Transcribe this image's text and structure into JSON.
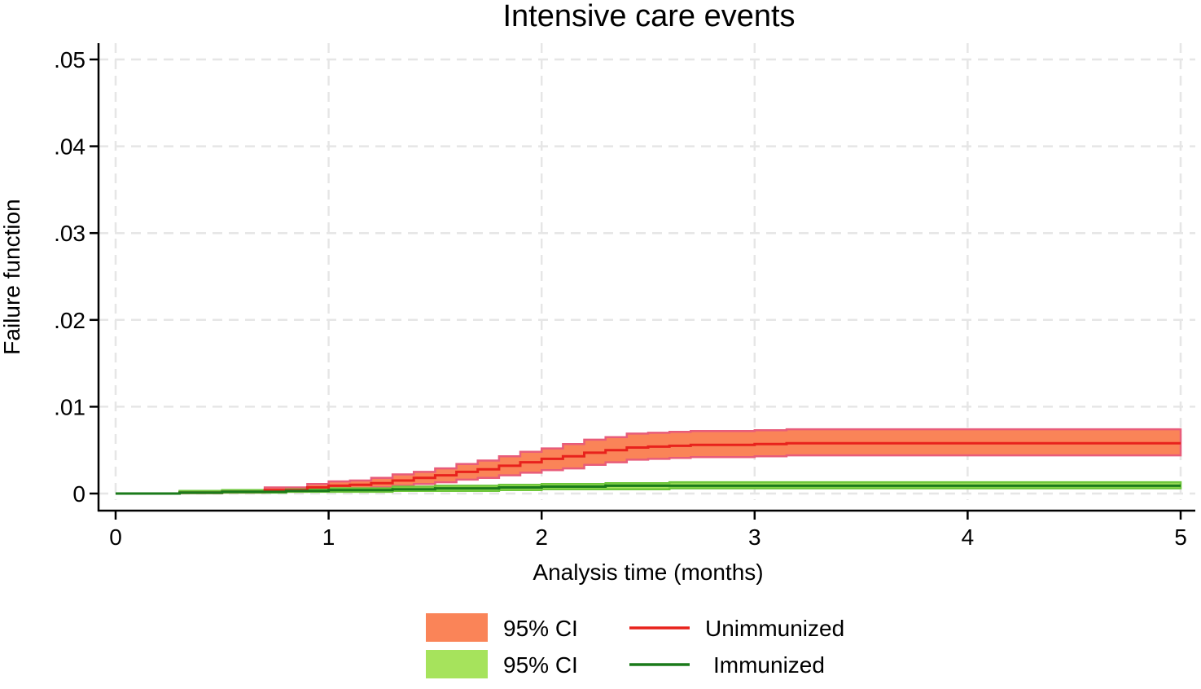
{
  "chart_data": {
    "type": "line",
    "title": "Intensive care events",
    "xlabel": "Analysis time (months)",
    "ylabel": "Failure function",
    "xlim": [
      0,
      5
    ],
    "ylim": [
      0,
      0.05
    ],
    "xticks": [
      0,
      1,
      2,
      3,
      4,
      5
    ],
    "xtick_labels": [
      "0",
      "1",
      "2",
      "3",
      "4",
      "5"
    ],
    "yticks": [
      0,
      0.01,
      0.02,
      0.03,
      0.04,
      0.05
    ],
    "ytick_labels": [
      "0",
      ".01",
      ".02",
      ".03",
      ".04",
      ".05"
    ],
    "grid": true,
    "legend_position": "bottom",
    "series": [
      {
        "name": "Unimmunized",
        "line_color": "#e8221c",
        "ci_label": "95% CI",
        "ci_fill": "#fa8458",
        "ci_edge": "#e85c7a",
        "x": [
          0,
          0.3,
          0.5,
          0.7,
          0.9,
          1.0,
          1.1,
          1.2,
          1.3,
          1.4,
          1.5,
          1.6,
          1.7,
          1.8,
          1.9,
          2.0,
          2.1,
          2.2,
          2.3,
          2.4,
          2.5,
          2.6,
          2.7,
          2.8,
          3.0,
          3.15,
          4.0,
          5.0
        ],
        "y": [
          0,
          0.0001,
          0.0002,
          0.0004,
          0.0007,
          0.0009,
          0.001,
          0.0012,
          0.0015,
          0.0018,
          0.0021,
          0.0025,
          0.0028,
          0.0032,
          0.0036,
          0.004,
          0.0043,
          0.0047,
          0.005,
          0.0053,
          0.0054,
          0.0055,
          0.0056,
          0.0056,
          0.0057,
          0.0058,
          0.0058,
          0.0058
        ],
        "lower": [
          0,
          5e-05,
          0.0001,
          0.0002,
          0.0003,
          0.0005,
          0.0006,
          0.0007,
          0.0009,
          0.0011,
          0.0013,
          0.0016,
          0.0018,
          0.0021,
          0.0024,
          0.0027,
          0.0029,
          0.0033,
          0.0036,
          0.0039,
          0.004,
          0.0041,
          0.0042,
          0.0042,
          0.0043,
          0.0044,
          0.0044,
          0.0044
        ],
        "upper": [
          0,
          0.0002,
          0.0004,
          0.0007,
          0.0011,
          0.0014,
          0.0015,
          0.0018,
          0.0022,
          0.0025,
          0.0029,
          0.0034,
          0.0038,
          0.0043,
          0.0048,
          0.0052,
          0.0057,
          0.0062,
          0.0065,
          0.0069,
          0.007,
          0.0071,
          0.0072,
          0.0072,
          0.0073,
          0.0074,
          0.0074,
          0.0074
        ]
      },
      {
        "name": "Immunized",
        "line_color": "#1a7a1a",
        "ci_label": "95% CI",
        "ci_fill": "#a6e35c",
        "ci_edge": "#6fc73c",
        "x": [
          0,
          0.3,
          0.5,
          0.8,
          1.0,
          1.3,
          1.5,
          1.8,
          2.0,
          2.3,
          2.6,
          3.0,
          4.0,
          5.0
        ],
        "y": [
          0,
          0.0001,
          0.0002,
          0.0003,
          0.0004,
          0.0005,
          0.0006,
          0.0007,
          0.0008,
          0.0009,
          0.0009,
          0.0009,
          0.0009,
          0.0009
        ],
        "lower": [
          0,
          5e-05,
          0.0001,
          0.0002,
          0.0002,
          0.0003,
          0.0003,
          0.0004,
          0.0005,
          0.0005,
          0.0006,
          0.0006,
          0.0006,
          0.0006
        ],
        "upper": [
          0,
          0.0003,
          0.0004,
          0.0005,
          0.0006,
          0.0008,
          0.0009,
          0.001,
          0.0011,
          0.0012,
          0.0013,
          0.0013,
          0.0013,
          0.0013
        ]
      }
    ]
  }
}
